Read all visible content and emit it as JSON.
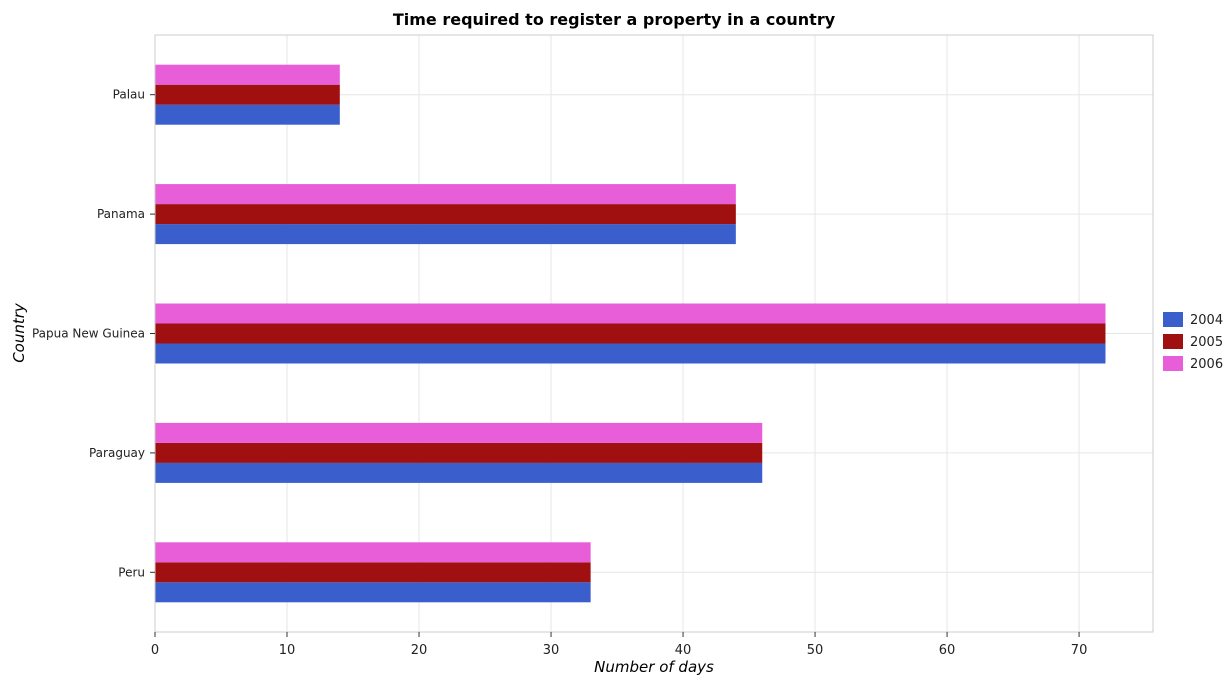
{
  "chart_data": {
    "type": "bar",
    "orientation": "horizontal",
    "title": "Time required to register a property in a country",
    "xlabel": "Number of days",
    "ylabel": "Country",
    "categories": [
      "Palau",
      "Panama",
      "Papua New Guinea",
      "Paraguay",
      "Peru"
    ],
    "series": [
      {
        "name": "2004",
        "color": "#3a5fcd",
        "values": [
          14,
          44,
          72,
          46,
          33
        ]
      },
      {
        "name": "2005",
        "color": "#a01010",
        "values": [
          14,
          44,
          72,
          46,
          33
        ]
      },
      {
        "name": "2006",
        "color": "#e85dd8",
        "values": [
          14,
          44,
          72,
          46,
          33
        ]
      }
    ],
    "xlim": [
      0,
      75.6
    ],
    "xticks": [
      0,
      10,
      20,
      30,
      40,
      50,
      60,
      70
    ],
    "xtick_labels": [
      "0",
      "10",
      "20",
      "30",
      "40",
      "50",
      "60",
      "70"
    ],
    "grid": true,
    "legend_position": "right"
  }
}
